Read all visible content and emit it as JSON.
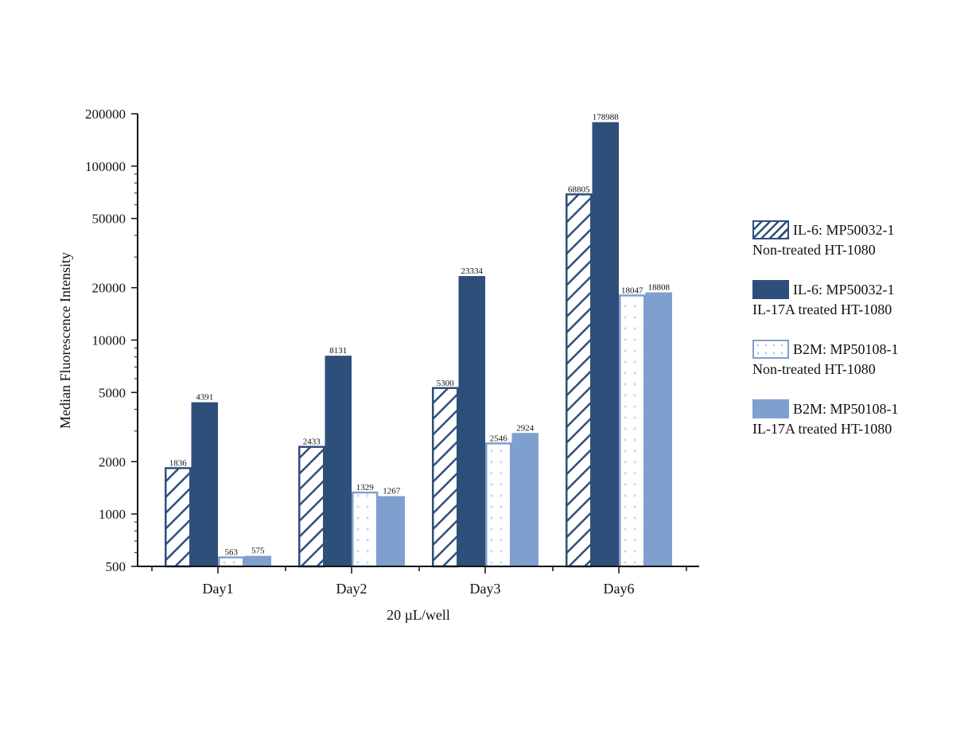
{
  "chart_data": {
    "type": "bar",
    "scale": "log",
    "title": "",
    "xlabel": "20 µL/well",
    "ylabel": "Median Fluorescence Intensity",
    "ylim": [
      500,
      200000
    ],
    "yticks": [
      500,
      1000,
      2000,
      5000,
      10000,
      20000,
      50000,
      100000,
      200000
    ],
    "ytick_labels": [
      "500",
      "1000",
      "2000",
      "5000",
      "10000",
      "20000",
      "50000",
      "100000",
      "200000"
    ],
    "categories": [
      "Day1",
      "Day2",
      "Day3",
      "Day6"
    ],
    "grid": false,
    "legend_position": "right",
    "series": [
      {
        "name": "IL-6: MP50032-1",
        "name_line2": "Non-treated HT-1080",
        "style": "hatch",
        "color": "#2f4f7b",
        "values": [
          1836,
          2433,
          5300,
          68805
        ]
      },
      {
        "name": "IL-6: MP50032-1",
        "name_line2": "IL-17A treated HT-1080",
        "style": "solid",
        "color": "#2f4f7b",
        "values": [
          4391,
          8131,
          23334,
          178988
        ]
      },
      {
        "name": "B2M: MP50108-1",
        "name_line2": "Non-treated HT-1080",
        "style": "dots",
        "color": "#7fa0cf",
        "values": [
          563,
          1329,
          2546,
          18047
        ]
      },
      {
        "name": "B2M: MP50108-1",
        "name_line2": "IL-17A treated HT-1080",
        "style": "solid",
        "color": "#7fa0cf",
        "values": [
          575,
          1267,
          2924,
          18808
        ]
      }
    ]
  }
}
